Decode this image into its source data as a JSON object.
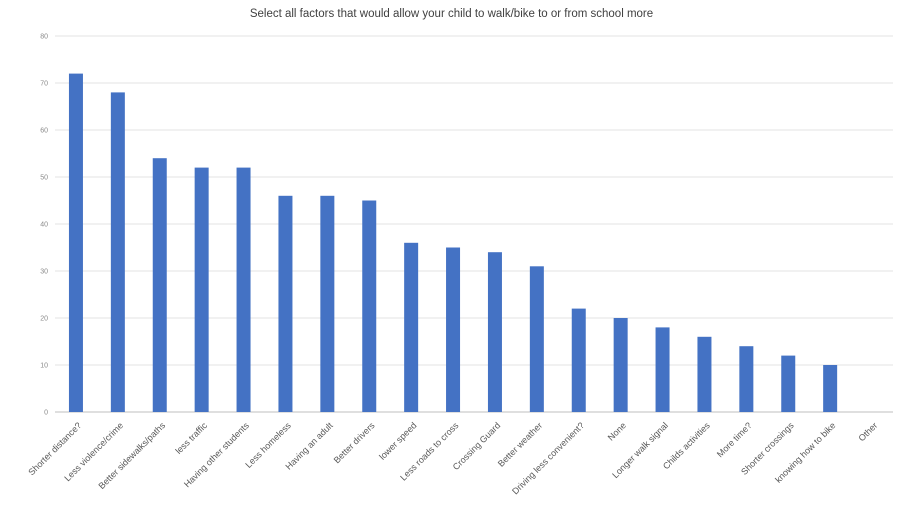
{
  "chart_data": {
    "type": "bar",
    "title": "Select all factors that would allow your child to walk/bike to or from school more",
    "xlabel": "",
    "ylabel": "",
    "ylim": [
      0,
      80
    ],
    "yticks": [
      "0",
      "10",
      "20",
      "30",
      "40",
      "50",
      "60",
      "70",
      "80"
    ],
    "grid": true,
    "legend": "none",
    "bar_color": "#4472C4",
    "categories": [
      "Shorter distance?",
      "Less violence/crime",
      "Better sidewalks/paths",
      "less traffic",
      "Having other students",
      "Less homeless",
      "Having an adult",
      "Better drivers",
      "lower speed",
      "Less roads to cross",
      "Crossing Guard",
      "Better weather",
      "Driving less convenient?",
      "None",
      "Longer walk signal",
      "Childs activities",
      "More time?",
      "Shorter crossings",
      "knowing how to bike",
      "Other"
    ],
    "values": [
      72,
      68,
      54,
      52,
      52,
      46,
      46,
      45,
      36,
      35,
      34,
      31,
      22,
      20,
      18,
      16,
      14,
      12,
      10,
      0
    ]
  }
}
